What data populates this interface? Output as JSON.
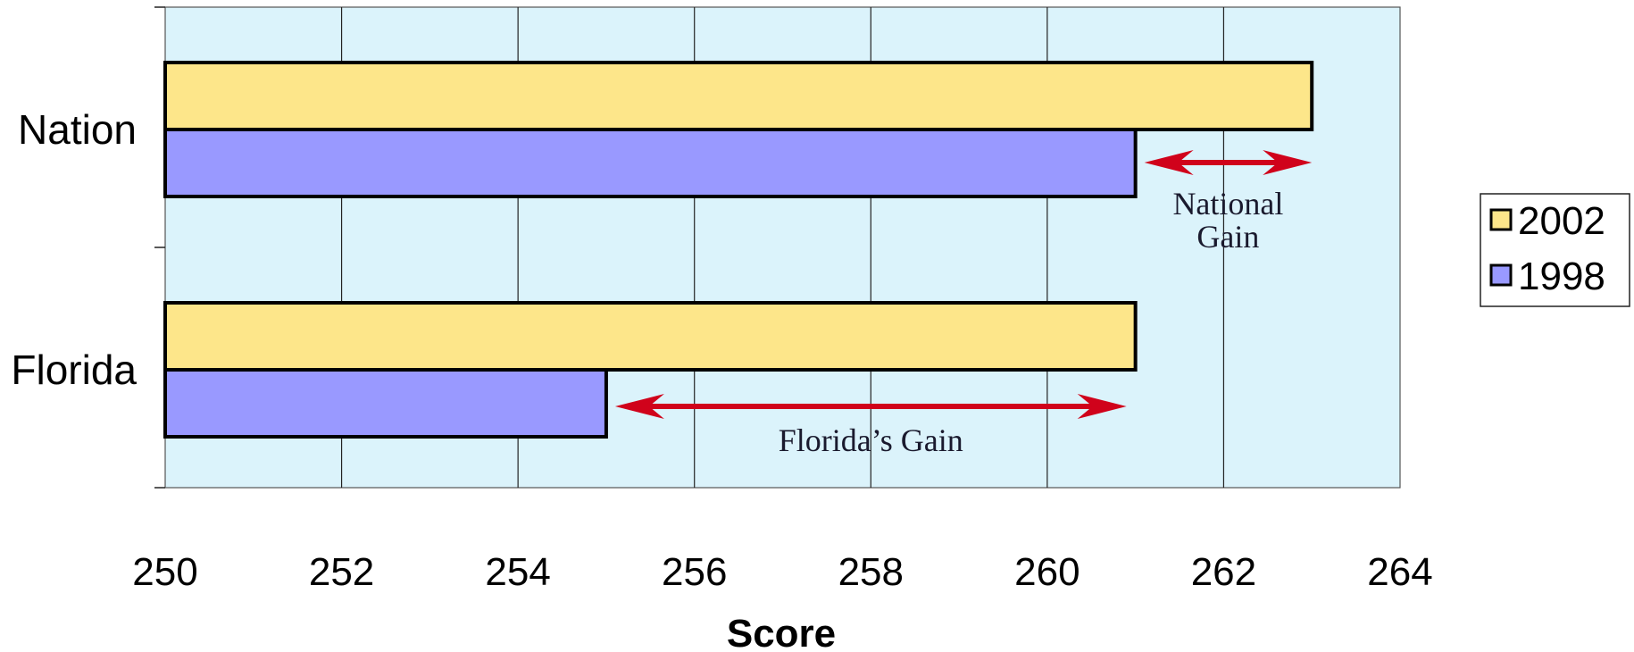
{
  "chart_data": {
    "type": "bar",
    "orientation": "horizontal",
    "categories": [
      "Nation",
      "Florida"
    ],
    "series": [
      {
        "name": "2002",
        "values": [
          263,
          261
        ]
      },
      {
        "name": "1998",
        "values": [
          261,
          255
        ]
      }
    ],
    "xlabel": "Score",
    "xlim": [
      250,
      264
    ],
    "xticks": [
      250,
      252,
      254,
      256,
      258,
      260,
      262,
      264
    ],
    "grid": true,
    "legend": "right",
    "annotations": [
      {
        "id": "national",
        "lines": [
          "National",
          "Gain"
        ],
        "from": 261,
        "to": 263,
        "category": "Nation"
      },
      {
        "id": "florida",
        "lines": [
          "Florida’s Gain"
        ],
        "from": 255,
        "to": 261,
        "category": "Florida"
      }
    ],
    "colors": {
      "2002": "#fde68a",
      "1998": "#9999ff",
      "plot_bg": "#dbf3fb",
      "arrow": "#d0021b"
    }
  }
}
